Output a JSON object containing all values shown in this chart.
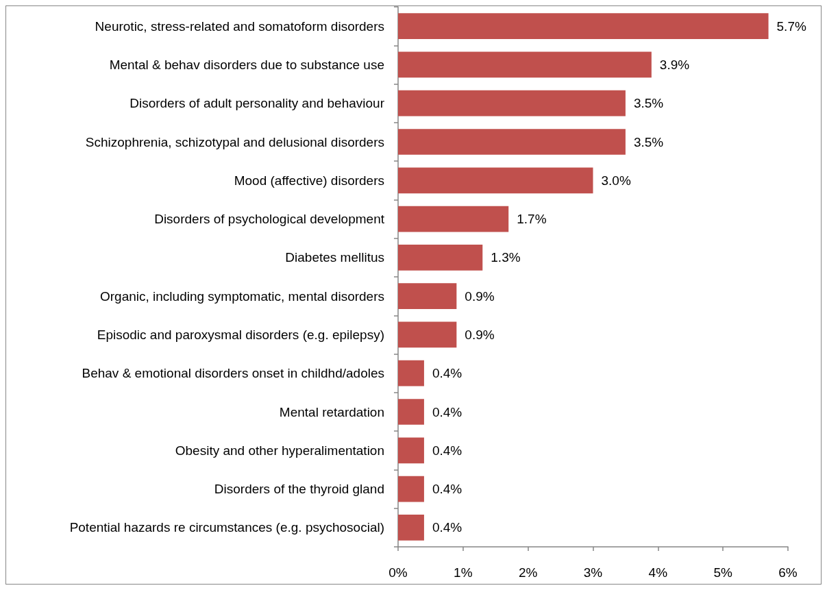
{
  "chart_data": {
    "type": "bar",
    "orientation": "horizontal",
    "categories": [
      "Neurotic, stress-related and somatoform disorders",
      "Mental & behav disorders due to substance use",
      "Disorders of adult personality and behaviour",
      "Schizophrenia, schizotypal and delusional disorders",
      "Mood (affective) disorders",
      "Disorders of psychological development",
      "Diabetes mellitus",
      "Organic, including symptomatic, mental disorders",
      "Episodic and paroxysmal disorders (e.g. epilepsy)",
      "Behav & emotional disorders onset in childhd/adoles",
      "Mental retardation",
      "Obesity and other hyperalimentation",
      "Disorders of the thyroid gland",
      "Potential hazards re circumstances (e.g. psychosocial)"
    ],
    "values": [
      5.7,
      3.9,
      3.5,
      3.5,
      3.0,
      1.7,
      1.3,
      0.9,
      0.9,
      0.4,
      0.4,
      0.4,
      0.4,
      0.4
    ],
    "value_labels": [
      "5.7%",
      "3.9%",
      "3.5%",
      "3.5%",
      "3.0%",
      "1.7%",
      "1.3%",
      "0.9%",
      "0.9%",
      "0.4%",
      "0.4%",
      "0.4%",
      "0.4%",
      "0.4%"
    ],
    "color": "#c0504d",
    "xlim": [
      0,
      6
    ],
    "xticks": [
      {
        "value": 0,
        "label": "0%"
      },
      {
        "value": 1,
        "label": "1%"
      },
      {
        "value": 2,
        "label": "2%"
      },
      {
        "value": 3,
        "label": "3%"
      },
      {
        "value": 4,
        "label": "4%"
      },
      {
        "value": 5,
        "label": "5%"
      },
      {
        "value": 6,
        "label": "6%"
      }
    ]
  }
}
